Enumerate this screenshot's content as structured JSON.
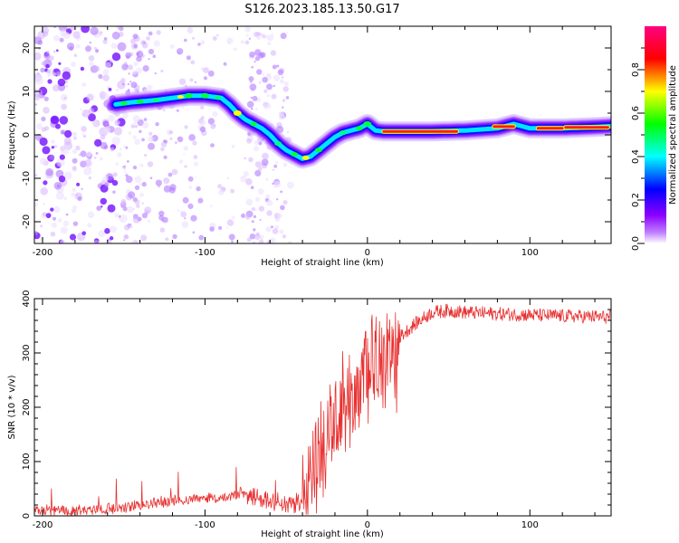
{
  "title": "S126.2023.185.13.50.G17",
  "chart_data": [
    {
      "type": "heatmap",
      "xlabel": "Height of straight line (km)",
      "ylabel": "Frequency (Hz)",
      "xlim": [
        -205,
        150
      ],
      "ylim": [
        -25,
        25
      ],
      "xticks": [
        -200,
        -100,
        0,
        100
      ],
      "yticks": [
        -20,
        -10,
        0,
        10,
        20
      ],
      "grid": false,
      "ridge": {
        "x": [
          -155,
          -145,
          -130,
          -120,
          -110,
          -100,
          -90,
          -85,
          -80,
          -75,
          -70,
          -65,
          -60,
          -55,
          -50,
          -45,
          -40,
          -35,
          -30,
          -25,
          -20,
          -15,
          -10,
          -5,
          0,
          5,
          10,
          20,
          40,
          60,
          80,
          90,
          100,
          110,
          120,
          140,
          150
        ],
        "y": [
          7,
          7.5,
          8,
          8.5,
          9,
          9,
          8.5,
          7,
          5,
          3.5,
          2.5,
          1.5,
          0,
          -2,
          -3.5,
          -4.5,
          -5.5,
          -5,
          -3.5,
          -2,
          -0.5,
          0.5,
          1,
          1.5,
          2.5,
          1,
          0.8,
          0.8,
          0.8,
          1,
          1.5,
          2.5,
          1.5,
          1.5,
          1.5,
          1.8,
          2
        ]
      },
      "colorbar": {
        "label": "Normalized spectral amplitude",
        "ticks": [
          0.0,
          0.2,
          0.4,
          0.6,
          0.8
        ],
        "tick_labels": [
          "0.0",
          "0.2",
          "0.4",
          "0.6",
          "0.8"
        ],
        "range": [
          0,
          1
        ],
        "colormap": [
          "#ffffff",
          "#8b00ff",
          "#0000ff",
          "#00ffff",
          "#00ff00",
          "#ffff00",
          "#ff0000",
          "#ff0080"
        ]
      }
    },
    {
      "type": "line",
      "xlabel": "Height of straight line (km)",
      "ylabel": "SNR (10 * v/v)",
      "xlim": [
        -205,
        150
      ],
      "ylim": [
        0,
        400
      ],
      "xticks": [
        -200,
        -100,
        0,
        100
      ],
      "yticks": [
        0,
        100,
        200,
        300,
        400
      ],
      "color": "#e83030",
      "series": [
        {
          "x": [
            -205,
            -180,
            -150,
            -130,
            -110,
            -100,
            -90,
            -80,
            -70,
            -60,
            -50,
            -40,
            -35,
            -30,
            -25,
            -20,
            -15,
            -10,
            -5,
            0,
            5,
            10,
            15,
            20,
            30,
            40,
            50,
            60,
            80,
            100,
            120,
            150
          ],
          "y": [
            10,
            10,
            15,
            25,
            30,
            35,
            30,
            40,
            35,
            30,
            20,
            25,
            60,
            110,
            150,
            190,
            210,
            230,
            250,
            270,
            290,
            300,
            310,
            330,
            355,
            375,
            378,
            375,
            372,
            370,
            368,
            366
          ]
        }
      ]
    }
  ]
}
